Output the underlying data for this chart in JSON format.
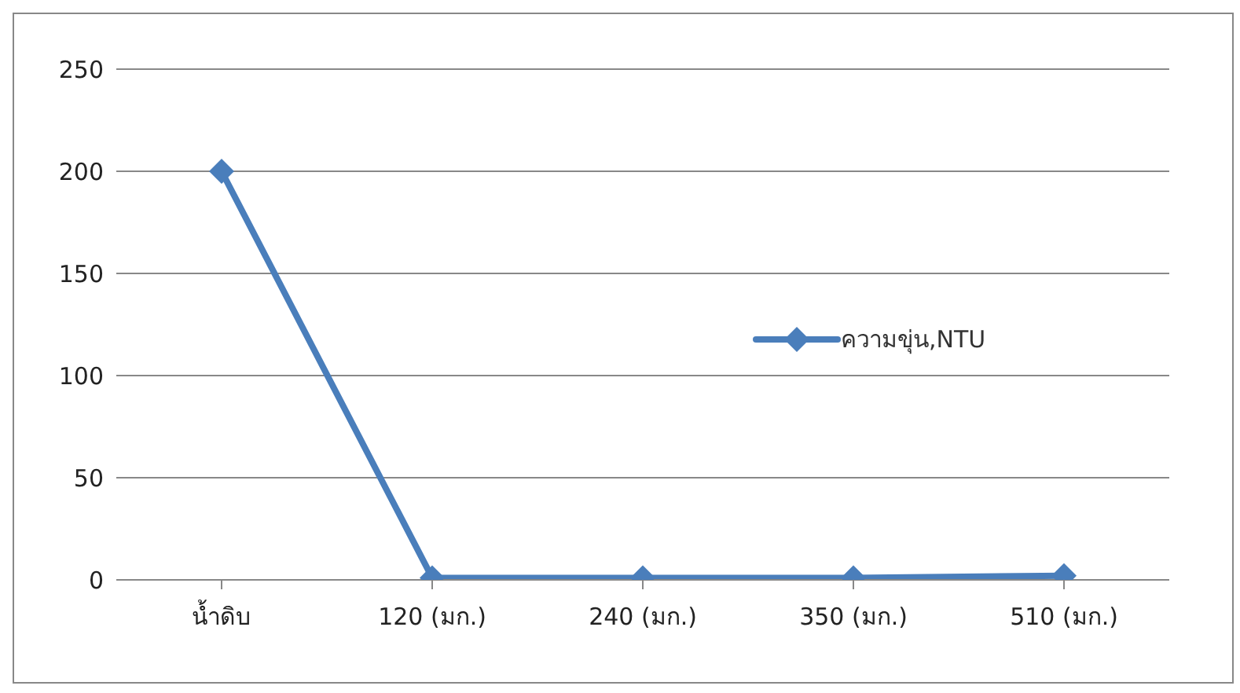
{
  "chart_data": {
    "type": "line",
    "categories": [
      "น้ำดิบ",
      "120 (มก.)",
      "240 (มก.)",
      "350 (มก.)",
      "510 (มก.)"
    ],
    "series": [
      {
        "name": "ความขุ่น,NTU",
        "color": "#4a7ebb",
        "values": [
          200,
          1,
          1,
          1,
          2
        ]
      }
    ],
    "ylim": [
      0,
      250
    ],
    "yticks": [
      0,
      50,
      100,
      150,
      200,
      250
    ],
    "grid": "y",
    "legend": "right",
    "marker": "diamond",
    "line_style": "solid"
  }
}
